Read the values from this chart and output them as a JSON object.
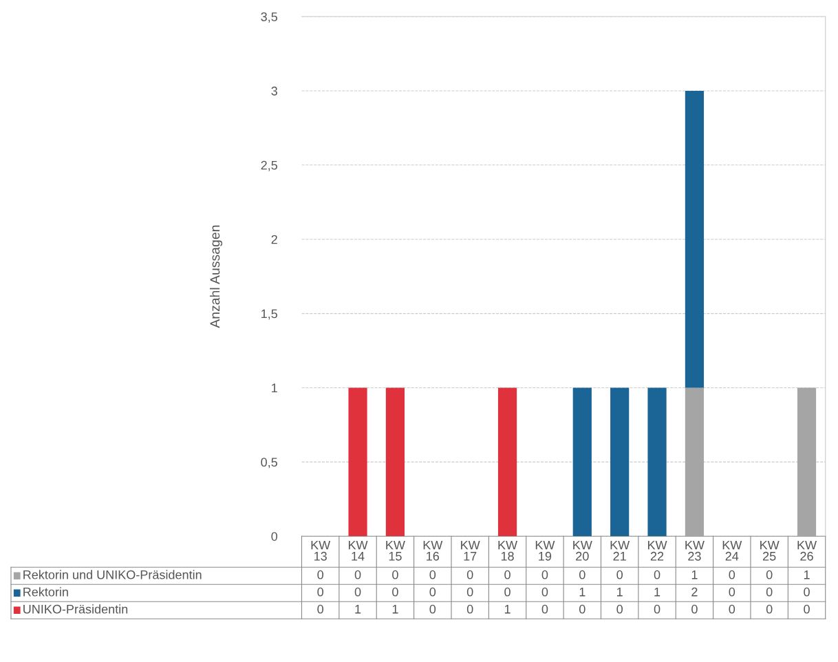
{
  "chart_data": {
    "type": "bar",
    "stacked": true,
    "ylabel": "Anzahl Aussagen",
    "categories": [
      "KW\n13",
      "KW\n14",
      "KW\n15",
      "KW\n16",
      "KW\n17",
      "KW\n18",
      "KW\n19",
      "KW\n20",
      "KW\n21",
      "KW\n22",
      "KW\n23",
      "KW\n24",
      "KW\n25",
      "KW\n26"
    ],
    "series": [
      {
        "name": "Rektorin und UNIKO-Präsidentin",
        "color": "#a5a5a5",
        "values": [
          0,
          0,
          0,
          0,
          0,
          0,
          0,
          0,
          0,
          0,
          1,
          0,
          0,
          1
        ]
      },
      {
        "name": "Rektorin",
        "color": "#1a6496",
        "values": [
          0,
          0,
          0,
          0,
          0,
          0,
          0,
          1,
          1,
          1,
          2,
          0,
          0,
          0
        ]
      },
      {
        "name": "UNIKO-Präsidentin",
        "color": "#e0323c",
        "values": [
          0,
          1,
          1,
          0,
          0,
          1,
          0,
          0,
          0,
          0,
          0,
          0,
          0,
          0
        ]
      }
    ],
    "ylim": [
      0,
      3.5
    ],
    "yticks": [
      {
        "value": 0,
        "label": "0"
      },
      {
        "value": 0.5,
        "label": "0,5"
      },
      {
        "value": 1,
        "label": "1"
      },
      {
        "value": 1.5,
        "label": "1,5"
      },
      {
        "value": 2,
        "label": "2"
      },
      {
        "value": 2.5,
        "label": "2,5"
      },
      {
        "value": 3,
        "label": "3"
      },
      {
        "value": 3.5,
        "label": "3,5"
      }
    ],
    "grid": "y",
    "data_labels": true,
    "legend": "bottom"
  }
}
